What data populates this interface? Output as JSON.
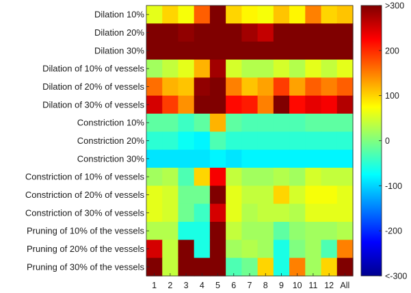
{
  "chart_data": {
    "type": "heatmap",
    "title": "",
    "xlabel": "",
    "ylabel": "",
    "rows": [
      "Dilation 10%",
      "Dilation 20%",
      "Dilation 30%",
      "Dilation of 10% of vessels",
      "Dilation of 20% of vessels",
      "Dilation of 30% of vessels",
      "Constriction 10%",
      "Constriction 20%",
      "Constriction 30%",
      "Constriction of 10% of vessels",
      "Constriction of 20% of vessels",
      "Constriction of 30% of vessels",
      "Pruning of 10% of the vessels",
      "Pruning of 20% of the vessels",
      "Pruning of 30% of the vessels"
    ],
    "columns": [
      "1",
      "2",
      "3",
      "4",
      "5",
      "6",
      "7",
      "8",
      "9",
      "10",
      "11",
      "12",
      "All"
    ],
    "values": [
      [
        60,
        100,
        70,
        170,
        300,
        100,
        80,
        70,
        110,
        80,
        150,
        100,
        110
      ],
      [
        300,
        300,
        290,
        300,
        300,
        300,
        280,
        260,
        300,
        300,
        300,
        300,
        300
      ],
      [
        300,
        300,
        300,
        300,
        300,
        300,
        300,
        300,
        300,
        300,
        300,
        300,
        300
      ],
      [
        20,
        40,
        60,
        120,
        280,
        50,
        30,
        30,
        50,
        30,
        60,
        40,
        60
      ],
      [
        160,
        120,
        110,
        290,
        300,
        150,
        110,
        130,
        190,
        130,
        170,
        150,
        170
      ],
      [
        250,
        190,
        140,
        300,
        300,
        220,
        210,
        150,
        300,
        220,
        240,
        230,
        270
      ],
      [
        -20,
        -20,
        -40,
        -20,
        120,
        -20,
        -30,
        -30,
        -30,
        -30,
        -20,
        -20,
        -20
      ],
      [
        -50,
        -50,
        -70,
        -80,
        -30,
        -50,
        -50,
        -50,
        -50,
        -50,
        -50,
        -50,
        -50
      ],
      [
        -90,
        -90,
        -90,
        -90,
        -80,
        -90,
        -80,
        -80,
        -80,
        -80,
        -80,
        -80,
        -80
      ],
      [
        20,
        30,
        -30,
        100,
        230,
        40,
        20,
        20,
        30,
        20,
        50,
        40,
        40
      ],
      [
        60,
        50,
        -10,
        -10,
        300,
        60,
        40,
        40,
        100,
        50,
        70,
        70,
        60
      ],
      [
        60,
        50,
        -10,
        -40,
        250,
        60,
        30,
        40,
        40,
        30,
        60,
        60,
        60
      ],
      [
        30,
        30,
        -60,
        -60,
        300,
        40,
        20,
        20,
        -20,
        10,
        20,
        20,
        30
      ],
      [
        250,
        40,
        300,
        -60,
        300,
        20,
        30,
        20,
        -60,
        0,
        20,
        -30,
        150
      ],
      [
        300,
        40,
        300,
        300,
        300,
        -30,
        -10,
        100,
        -60,
        150,
        20,
        100,
        300
      ]
    ],
    "colorbar": {
      "range": [
        -300,
        300
      ],
      "tick_values": [
        -300,
        -200,
        -100,
        0,
        100,
        200,
        300
      ],
      "tick_labels": [
        "<-300",
        "-200",
        "-100",
        "0",
        "100",
        "200",
        ">300"
      ],
      "colormap": "jet"
    },
    "grid": false
  }
}
